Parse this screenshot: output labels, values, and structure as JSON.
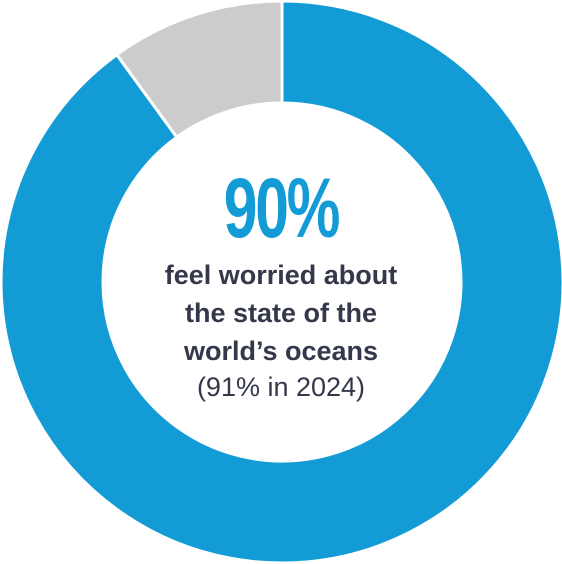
{
  "chart_data": {
    "type": "pie",
    "donut": true,
    "slices": [
      {
        "label": "feel worried",
        "value": 90,
        "color": "#139bd5"
      },
      {
        "label": "remainder",
        "value": 10,
        "color": "#cccccc"
      }
    ],
    "start_angle": "12 o'clock",
    "direction": "clockwise"
  },
  "center": {
    "stat": "90%",
    "stat_color": "#139bd5",
    "caption_lines": [
      "feel worried about",
      "the state of the",
      "world’s oceans"
    ],
    "comparison": "(91% in 2024)"
  }
}
